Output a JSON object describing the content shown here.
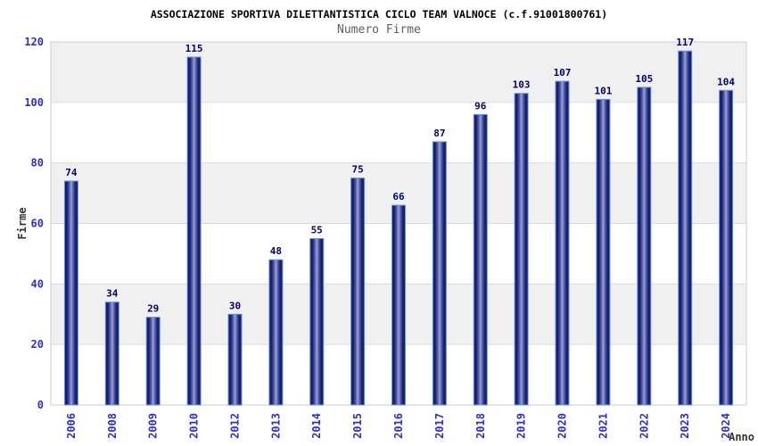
{
  "header": {
    "title": "ASSOCIAZIONE SPORTIVA DILETTANTISTICA CICLO TEAM VALNOCE (c.f.91001800761)",
    "subtitle": "Numero Firme"
  },
  "chart_data": {
    "type": "bar",
    "title": "ASSOCIAZIONE SPORTIVA DILETTANTISTICA CICLO TEAM VALNOCE (c.f.91001800761)",
    "subtitle": "Numero Firme",
    "categories": [
      "2006",
      "2008",
      "2009",
      "2010",
      "2012",
      "2013",
      "2014",
      "2015",
      "2016",
      "2017",
      "2018",
      "2019",
      "2020",
      "2021",
      "2022",
      "2023",
      "2024"
    ],
    "values": [
      74,
      34,
      29,
      115,
      30,
      48,
      55,
      75,
      66,
      87,
      96,
      103,
      107,
      101,
      105,
      117,
      104
    ],
    "xlabel": "Anno",
    "ylabel": "Firme",
    "ylim": [
      0,
      120
    ],
    "ytick_interval": 20,
    "yticks": [
      0,
      20,
      40,
      60,
      80,
      100,
      120
    ],
    "grid": "alternating horizontal bands every 20 units",
    "legend": "none",
    "value_labels": "above each bar",
    "colors": {
      "bar_edge_dark": "#181f72",
      "bar_mid": "#5d67ac",
      "bar_center_light": "#9ba3d8",
      "bar_border": "#5c97ea",
      "value_label": "#000073",
      "tick_label": "#2d2dd2",
      "axis_label": "#333333",
      "band_gray": "#f0f0f0",
      "band_white": "#ffffff",
      "gridline": "#dcdcdc",
      "plot_border": "#cccccc",
      "title_color": "#000000",
      "subtitle_color": "#606060"
    }
  }
}
